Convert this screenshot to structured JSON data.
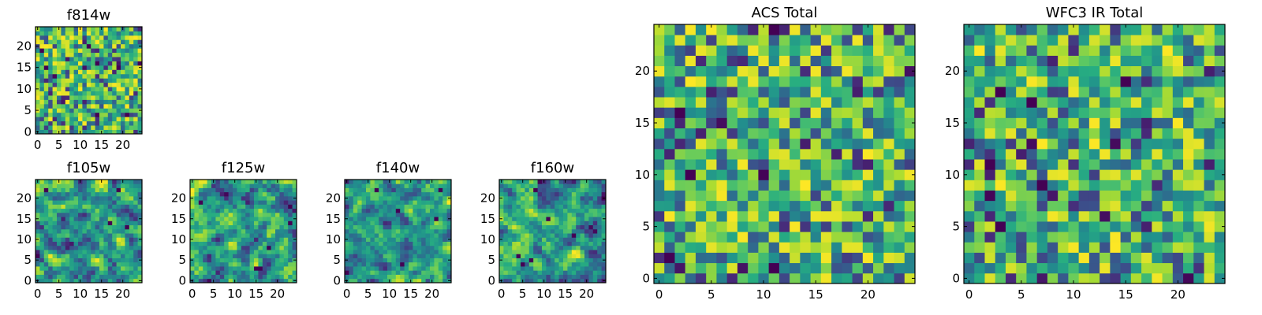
{
  "chart_data": [
    {
      "type": "heatmap",
      "title": "f814w",
      "size": 25,
      "xlim": [
        0,
        24
      ],
      "ylim": [
        0,
        24
      ],
      "xticks": [
        0,
        5,
        10,
        15,
        20
      ],
      "yticks": [
        0,
        5,
        10,
        15,
        20
      ],
      "colormap": "viridis",
      "seed": 11,
      "smooth": 0
    },
    {
      "type": "heatmap",
      "title": "f105w",
      "size": 25,
      "xlim": [
        0,
        24
      ],
      "ylim": [
        0,
        24
      ],
      "xticks": [
        0,
        5,
        10,
        15,
        20
      ],
      "yticks": [
        0,
        5,
        10,
        15,
        20
      ],
      "colormap": "viridis",
      "seed": 23,
      "smooth": 1
    },
    {
      "type": "heatmap",
      "title": "f125w",
      "size": 25,
      "xlim": [
        0,
        24
      ],
      "ylim": [
        0,
        24
      ],
      "xticks": [
        0,
        5,
        10,
        15,
        20
      ],
      "yticks": [
        0,
        5,
        10,
        15,
        20
      ],
      "colormap": "viridis",
      "seed": 37,
      "smooth": 1
    },
    {
      "type": "heatmap",
      "title": "f140w",
      "size": 25,
      "xlim": [
        0,
        24
      ],
      "ylim": [
        0,
        24
      ],
      "xticks": [
        0,
        5,
        10,
        15,
        20
      ],
      "yticks": [
        0,
        5,
        10,
        15,
        20
      ],
      "colormap": "viridis",
      "seed": 41,
      "smooth": 1
    },
    {
      "type": "heatmap",
      "title": "f160w",
      "size": 25,
      "xlim": [
        0,
        24
      ],
      "ylim": [
        0,
        24
      ],
      "xticks": [
        0,
        5,
        10,
        15,
        20
      ],
      "yticks": [
        0,
        5,
        10,
        15,
        20
      ],
      "colormap": "viridis",
      "seed": 53,
      "smooth": 1
    },
    {
      "type": "heatmap",
      "title": "ACS Total",
      "size": 25,
      "xlim": [
        0,
        24
      ],
      "ylim": [
        0,
        24
      ],
      "xticks": [
        0,
        5,
        10,
        15,
        20
      ],
      "yticks": [
        0,
        5,
        10,
        15,
        20
      ],
      "colormap": "viridis",
      "seed": 67,
      "smooth": 0
    },
    {
      "type": "heatmap",
      "title": "WFC3 IR Total",
      "size": 25,
      "xlim": [
        0,
        24
      ],
      "ylim": [
        0,
        24
      ],
      "xticks": [
        0,
        5,
        10,
        15,
        20
      ],
      "yticks": [
        0,
        5,
        10,
        15,
        20
      ],
      "colormap": "viridis",
      "seed": 79,
      "smooth": 0
    }
  ]
}
